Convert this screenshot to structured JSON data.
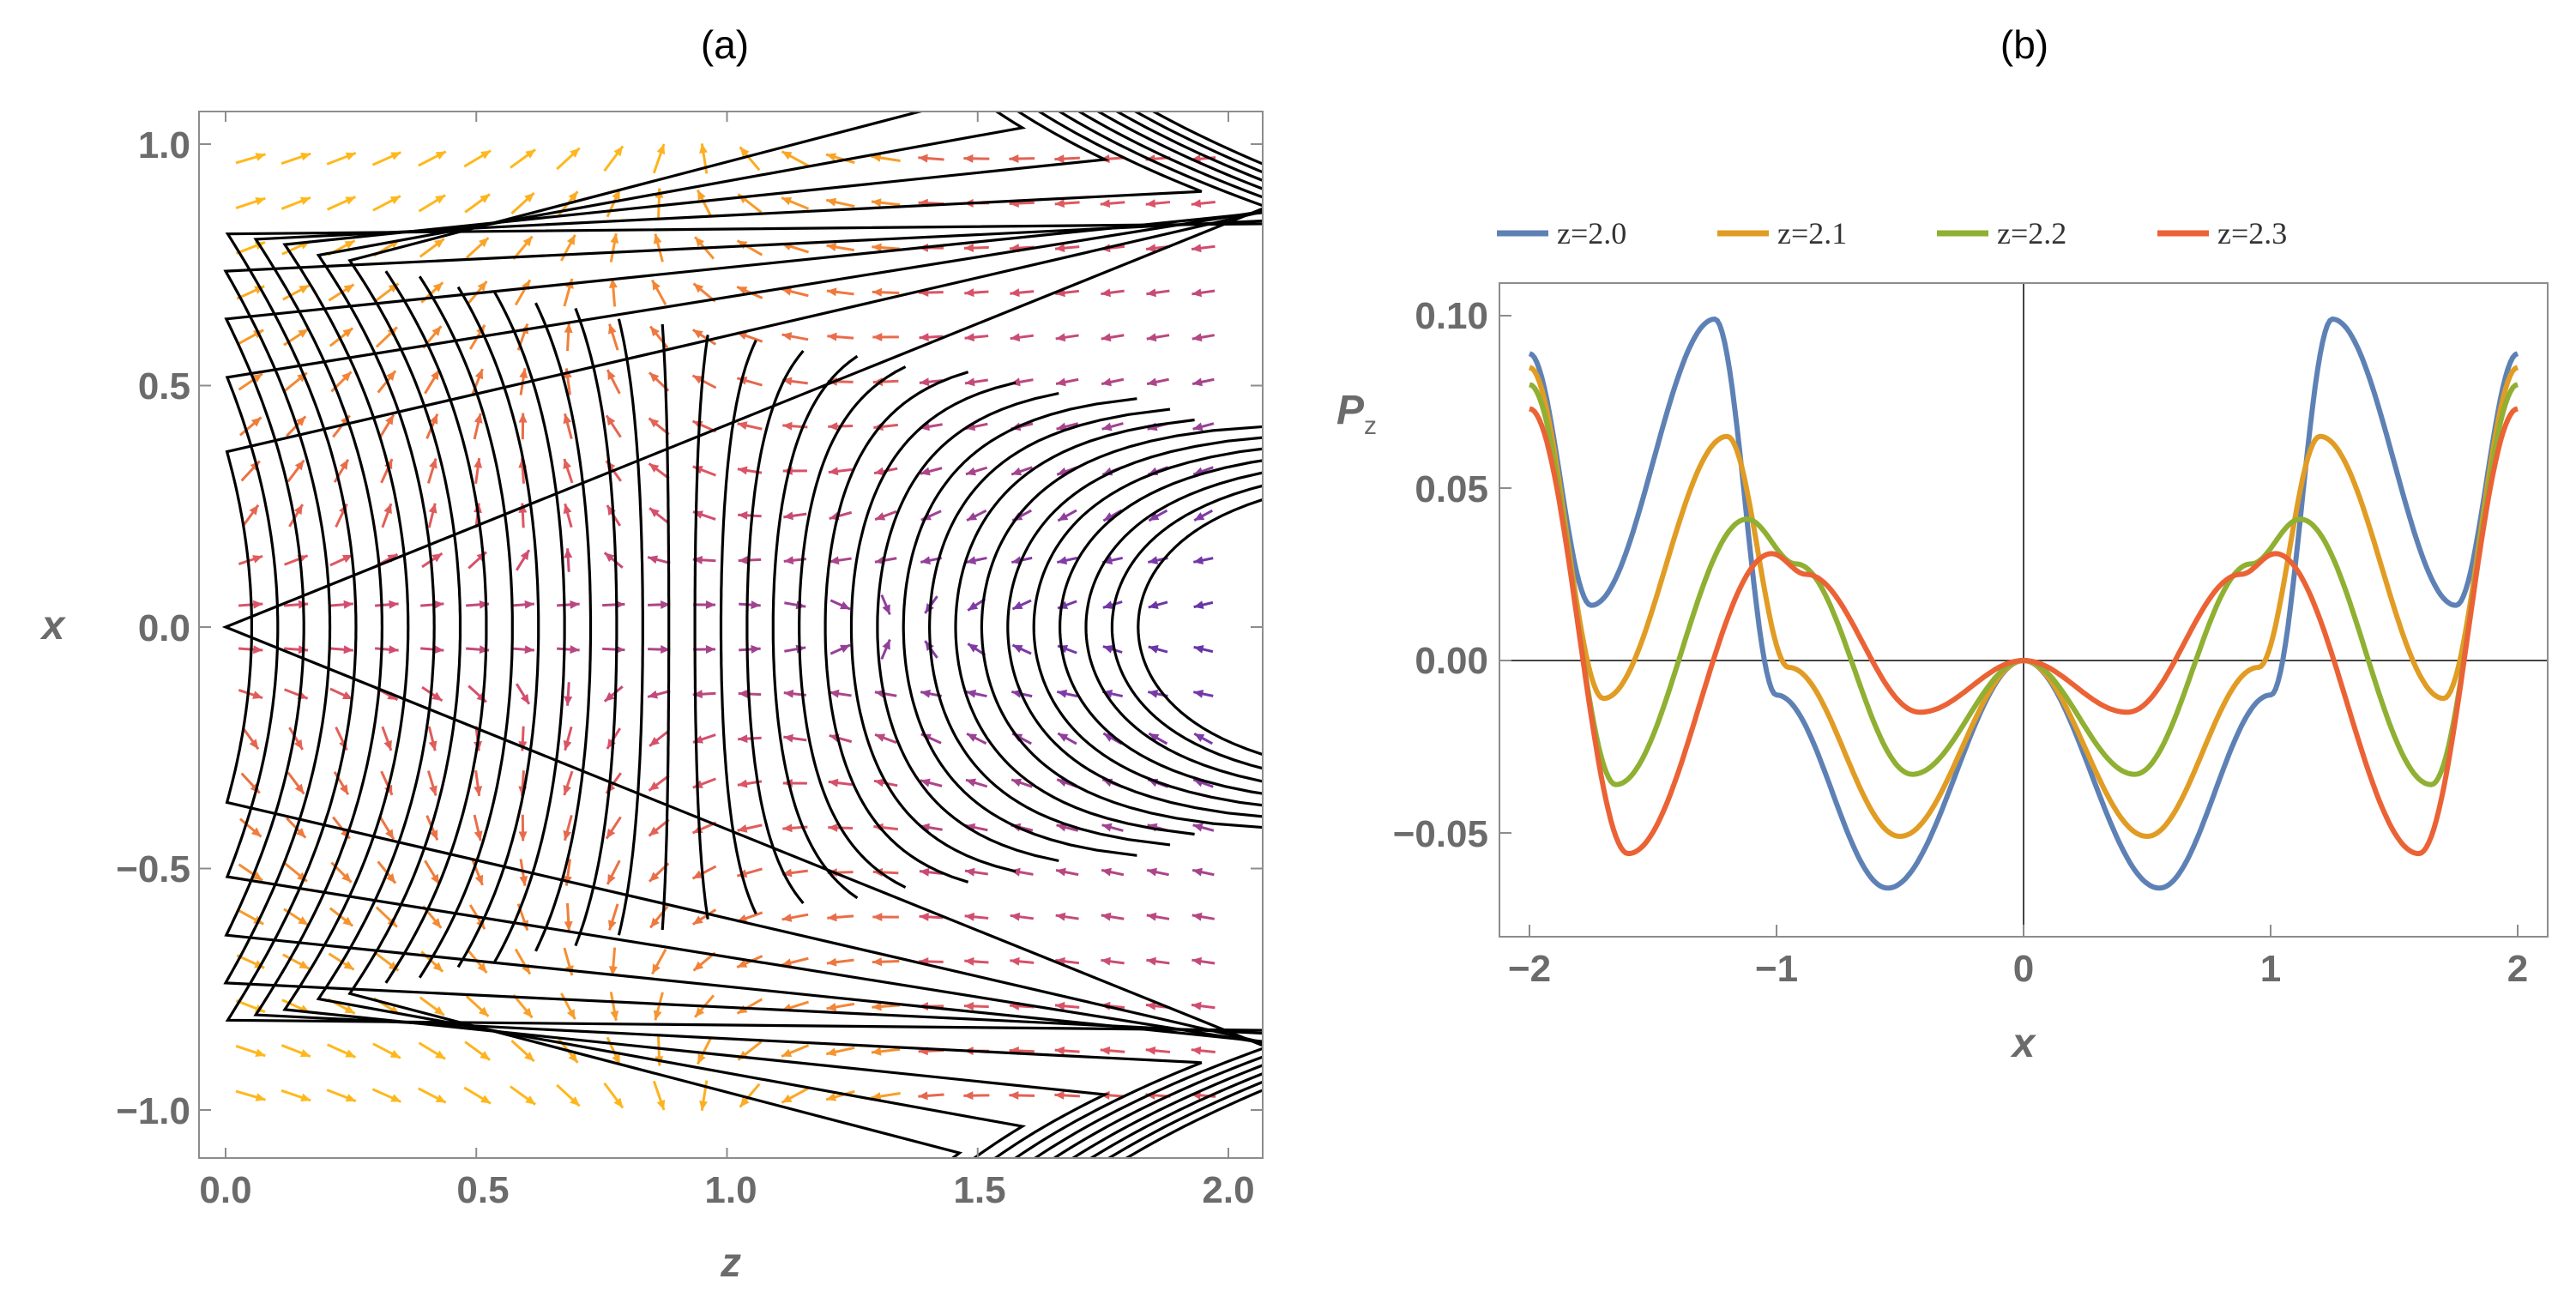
{
  "panel_a": {
    "label": "(a)",
    "xlabel": "z",
    "ylabel": "x",
    "xticks": [
      "0.0",
      "0.5",
      "1.0",
      "1.5",
      "2.0"
    ],
    "yticks": [
      "1.0",
      "0.5",
      "0.0",
      "−0.5",
      "−1.0"
    ]
  },
  "panel_b": {
    "label": "(b)",
    "xlabel": "x",
    "ylabel_main": "P",
    "ylabel_sub": "z",
    "xticks": [
      "−2",
      "−1",
      "0",
      "1",
      "2"
    ],
    "yticks": [
      "0.10",
      "0.05",
      "0.00",
      "−0.05"
    ]
  },
  "chart_data": [
    {
      "type": "vector-field-with-streamlines",
      "title": "(a)",
      "xlabel": "z",
      "ylabel": "x",
      "xlim": [
        0,
        2
      ],
      "ylim": [
        -1,
        1
      ],
      "xticks": [
        0.0,
        0.5,
        1.0,
        1.5,
        2.0
      ],
      "yticks": [
        -1.0,
        -0.5,
        0.0,
        0.5,
        1.0
      ],
      "colormap": [
        "#2e2a9e",
        "#7e3aa8",
        "#d84f6b",
        "#f07a3c",
        "#ffb81c"
      ]
    },
    {
      "type": "line",
      "title": "(b)",
      "xlabel": "x",
      "ylabel": "P_z",
      "xlim": [
        -2,
        2
      ],
      "ylim": [
        -0.075,
        0.105
      ],
      "xticks": [
        -2,
        -1,
        0,
        1,
        2
      ],
      "yticks": [
        -0.05,
        0.0,
        0.05,
        0.1
      ],
      "legend_position": "top",
      "series": [
        {
          "name": "z=2.0",
          "color": "#5e81b5",
          "x": [
            0,
            0.55,
            1.0,
            1.25,
            1.75,
            2.0
          ],
          "values": [
            0.0,
            -0.066,
            -0.01,
            0.099,
            0.016,
            0.089
          ]
        },
        {
          "name": "z=2.1",
          "color": "#e19c24",
          "x": [
            0,
            0.5,
            0.95,
            1.2,
            1.7,
            2.0
          ],
          "values": [
            0.0,
            -0.051,
            -0.002,
            0.065,
            -0.011,
            0.085
          ]
        },
        {
          "name": "z=2.2",
          "color": "#8fb032",
          "x": [
            0,
            0.45,
            0.92,
            1.12,
            1.65,
            2.0
          ],
          "values": [
            0.0,
            -0.033,
            0.028,
            0.041,
            -0.036,
            0.08
          ]
        },
        {
          "name": "z=2.3",
          "color": "#eb6235",
          "x": [
            0,
            0.42,
            0.88,
            1.02,
            1.6,
            2.0
          ],
          "values": [
            0.0,
            -0.015,
            0.025,
            0.031,
            -0.056,
            0.073
          ]
        }
      ]
    }
  ]
}
